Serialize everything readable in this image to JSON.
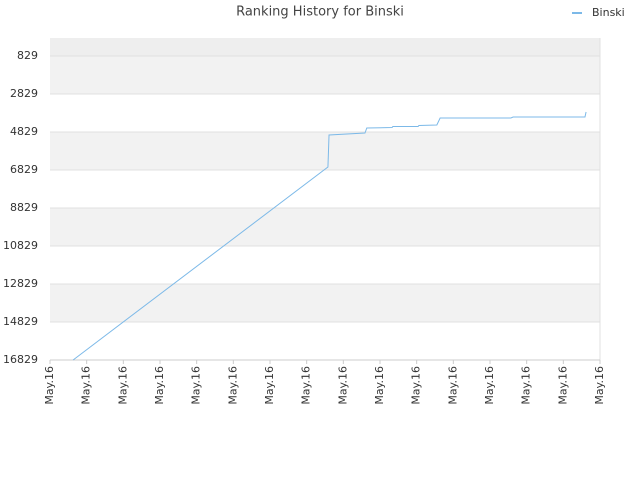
{
  "chart_data": {
    "type": "line",
    "title": "Ranking History for Binski",
    "series": [
      {
        "name": "Binski",
        "color": "#7cb9e8",
        "x": [
          0.63,
          7.58,
          7.61,
          8.59,
          8.64,
          9.33,
          9.35,
          10.04,
          10.06,
          10.55,
          10.64,
          12.57,
          12.63,
          14.59,
          14.62
        ],
        "values": [
          16829,
          6671,
          4987,
          4882,
          4619,
          4593,
          4540,
          4540,
          4487,
          4461,
          4092,
          4092,
          4040,
          4040,
          3776
        ]
      }
    ],
    "xlim": [
      0,
      15
    ],
    "xticks": [
      {
        "value": 0,
        "label": "May.16"
      },
      {
        "value": 1,
        "label": "May.16"
      },
      {
        "value": 2,
        "label": "May.16"
      },
      {
        "value": 3,
        "label": "May.16"
      },
      {
        "value": 4,
        "label": "May.16"
      },
      {
        "value": 5,
        "label": "May.16"
      },
      {
        "value": 6,
        "label": "May.16"
      },
      {
        "value": 7,
        "label": "May.16"
      },
      {
        "value": 8,
        "label": "May.16"
      },
      {
        "value": 9,
        "label": "May.16"
      },
      {
        "value": 10,
        "label": "May.16"
      },
      {
        "value": 11,
        "label": "May.16"
      },
      {
        "value": 12,
        "label": "May.16"
      },
      {
        "value": 13,
        "label": "May.16"
      },
      {
        "value": 14,
        "label": "May.16"
      },
      {
        "value": 15,
        "label": "May.16"
      }
    ],
    "ylim": [
      16829,
      -118
    ],
    "yticks": [
      829,
      2829,
      4829,
      6829,
      8829,
      10829,
      12829,
      14829,
      16829
    ],
    "grid": true,
    "legend": "top-right"
  }
}
